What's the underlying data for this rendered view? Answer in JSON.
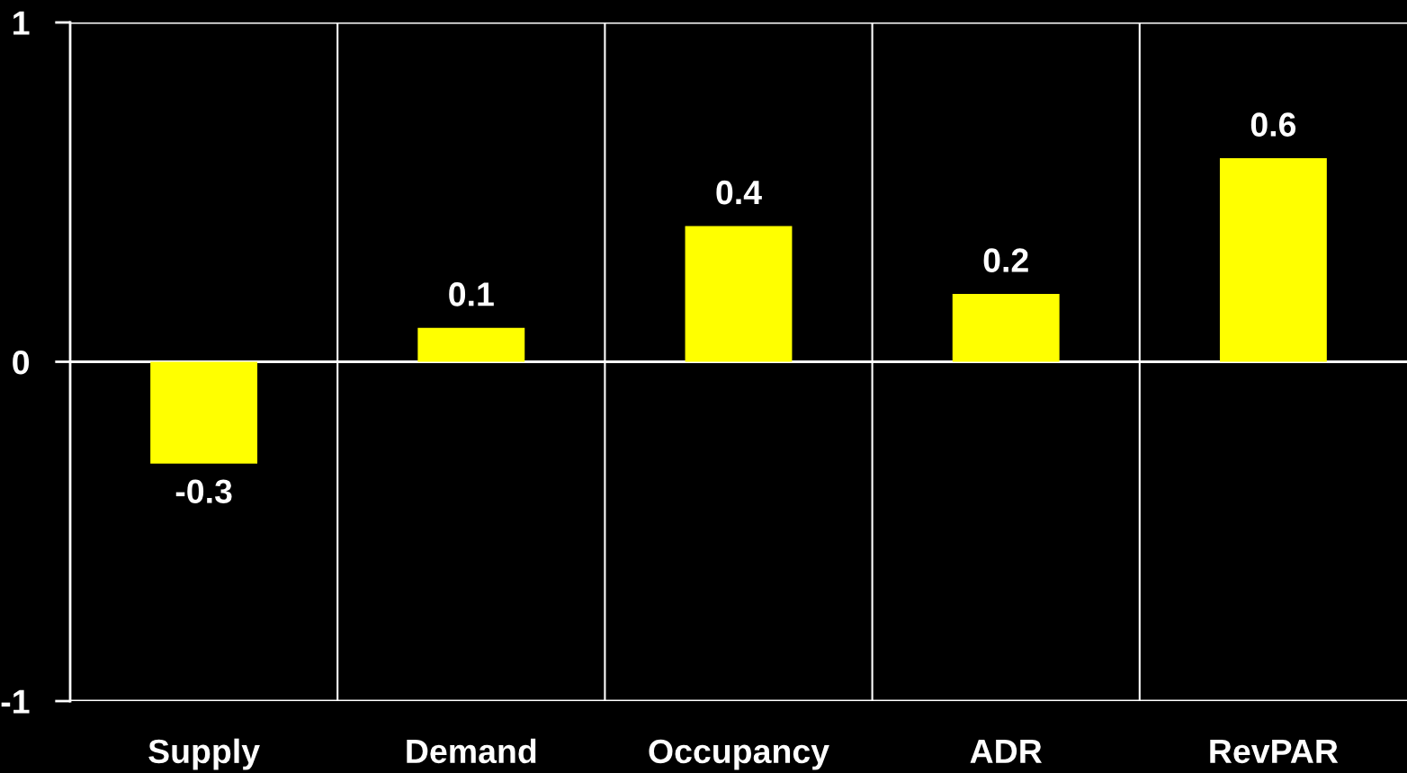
{
  "chart_data": {
    "type": "bar",
    "categories": [
      "Supply",
      "Demand",
      "Occupancy",
      "ADR",
      "RevPAR"
    ],
    "values": [
      -0.3,
      0.1,
      0.4,
      0.2,
      0.6
    ],
    "color": "#ffff00",
    "data_labels": true,
    "ylim": [
      -1,
      1
    ],
    "yticks": [
      {
        "value": -1,
        "label": "-1"
      },
      0,
      1
    ],
    "grid": true
  }
}
